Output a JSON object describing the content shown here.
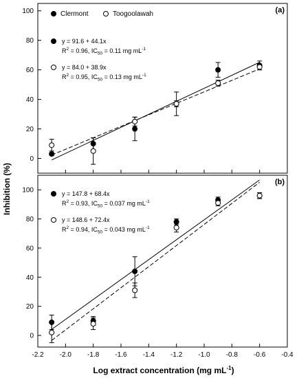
{
  "chart_data": {
    "type": "scatter",
    "xlabel": "Log extract concentration (mg mL",
    "xlabel_sup": "-1",
    "xlabel_close": ")",
    "ylabel": "Inhibition (%)",
    "xlim": [
      -2.2,
      -0.4
    ],
    "xticks": [
      "-2.2",
      "-2.0",
      "-1.8",
      "-1.6",
      "-1.4",
      "-1.2",
      "-1.0",
      "-0.8",
      "-0.6",
      "-0.4"
    ],
    "panels": [
      {
        "label": "(a)",
        "ylim": [
          -10,
          105
        ],
        "yticks": [
          "0",
          "20",
          "40",
          "60",
          "80",
          "100"
        ],
        "legend": [
          {
            "name": "Clermont",
            "marker": "filled"
          },
          {
            "name": "Toogoolawah",
            "marker": "open"
          }
        ],
        "equations": [
          {
            "marker": "filled",
            "eq": "y = 91.6 + 44.1x",
            "r2_prefix": "R",
            "r2_sup": "2",
            "r2_value": " = 0.96, IC",
            "ic_sub": "50",
            "ic_value": " = 0.11 mg mL",
            "unit_sup": "-1"
          },
          {
            "marker": "open",
            "eq": "y = 84.0 + 38.9x",
            "r2_prefix": "R",
            "r2_sup": "2",
            "r2_value": " = 0.95, IC",
            "ic_sub": "50",
            "ic_value": " = 0.13 mg mL",
            "unit_sup": "-1"
          }
        ],
        "series": [
          {
            "name": "Clermont",
            "marker": "filled",
            "line": "solid",
            "fit": {
              "intercept": 91.6,
              "slope": 44.1,
              "x_range": [
                -2.1,
                -0.6
              ]
            },
            "x": [
              -2.1,
              -1.8,
              -1.5,
              -1.2,
              -0.9,
              -0.6
            ],
            "y": [
              3,
              10,
              20,
              37,
              60,
              63
            ],
            "err": [
              1,
              4,
              8,
              8,
              5,
              3
            ]
          },
          {
            "name": "Toogoolawah",
            "marker": "open",
            "line": "dashed",
            "fit": {
              "intercept": 84.0,
              "slope": 38.9,
              "x_range": [
                -2.1,
                -0.6
              ]
            },
            "x": [
              -2.1,
              -1.8,
              -1.5,
              -1.2,
              -0.9,
              -0.6
            ],
            "y": [
              9,
              5,
              25,
              37,
              51,
              62
            ],
            "err": [
              4,
              9,
              3,
              2,
              2,
              2
            ]
          }
        ]
      },
      {
        "label": "(b)",
        "ylim": [
          -8,
          110
        ],
        "yticks": [
          "0",
          "20",
          "40",
          "60",
          "80",
          "100"
        ],
        "equations": [
          {
            "marker": "filled",
            "eq": "y = 147.8 + 68.4x",
            "r2_prefix": "R",
            "r2_sup": "2",
            "r2_value": " = 0.93, IC",
            "ic_sub": "50",
            "ic_value": " = 0.037 mg mL",
            "unit_sup": "-1"
          },
          {
            "marker": "open",
            "eq": "y = 148.6 + 72.4x",
            "r2_prefix": "R",
            "r2_sup": "2",
            "r2_value": " = 0.94, IC",
            "ic_sub": "50",
            "ic_value": " = 0.043 mg mL",
            "unit_sup": "-1"
          }
        ],
        "series": [
          {
            "name": "Clermont",
            "marker": "filled",
            "line": "solid",
            "fit": {
              "intercept": 147.8,
              "slope": 68.4,
              "x_range": [
                -2.1,
                -0.6
              ]
            },
            "x": [
              -2.1,
              -1.8,
              -1.5,
              -1.2,
              -0.9,
              -0.6
            ],
            "y": [
              9,
              10,
              44,
              78,
              93,
              96
            ],
            "err": [
              5,
              3,
              10,
              2,
              2,
              2
            ]
          },
          {
            "name": "Toogoolawah",
            "marker": "open",
            "line": "dashed",
            "fit": {
              "intercept": 148.6,
              "slope": 72.4,
              "x_range": [
                -2.1,
                -0.6
              ]
            },
            "x": [
              -2.1,
              -1.8,
              -1.5,
              -1.2,
              -0.9,
              -0.6
            ],
            "y": [
              2,
              8,
              31,
              74,
              91,
              96
            ],
            "err": [
              7,
              4,
              5,
              3,
              2,
              2
            ]
          }
        ]
      }
    ]
  }
}
